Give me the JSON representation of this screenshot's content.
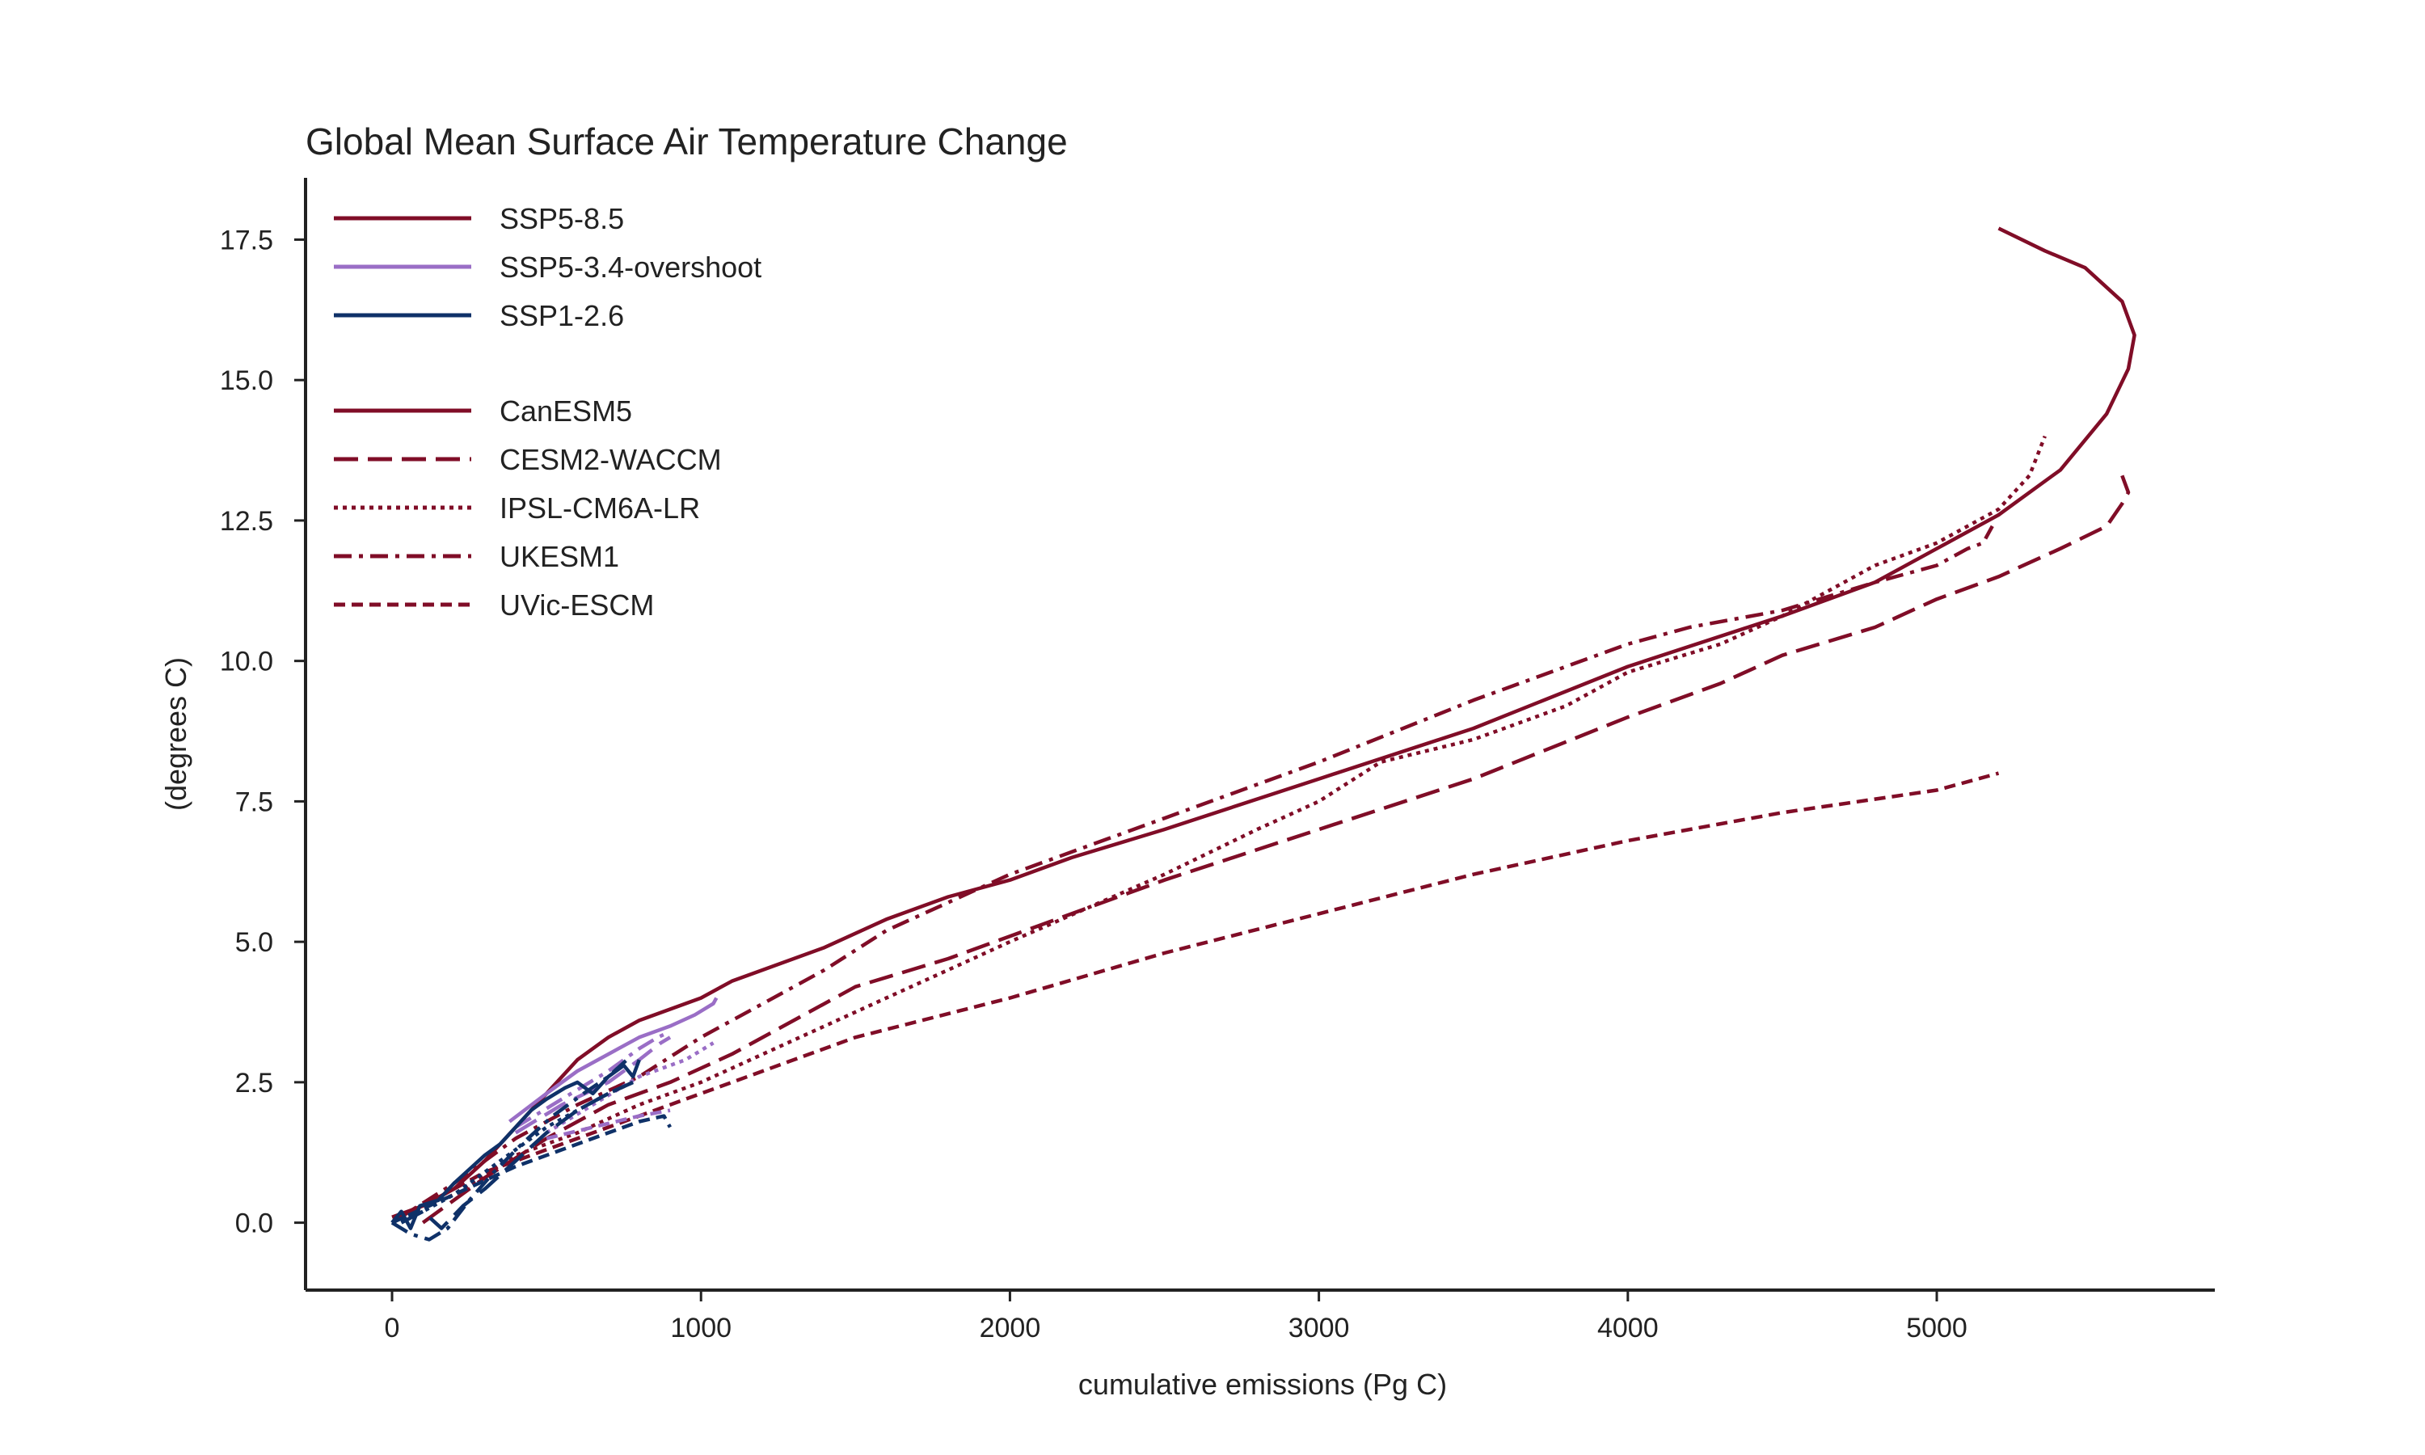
{
  "chart_data": {
    "type": "line",
    "title": "Global Mean Surface Air Temperature Change",
    "xlabel": "cumulative emissions (Pg C)",
    "ylabel": "(degrees C)",
    "xlim": [
      -280,
      5900
    ],
    "ylim": [
      -1.2,
      18.6
    ],
    "xticks": [
      0,
      1000,
      2000,
      3000,
      4000,
      5000
    ],
    "yticks": [
      0.0,
      2.5,
      5.0,
      7.5,
      10.0,
      12.5,
      15.0,
      17.5
    ],
    "xtick_labels": [
      "0",
      "1000",
      "2000",
      "3000",
      "4000",
      "5000"
    ],
    "ytick_labels": [
      "0.0",
      "2.5",
      "5.0",
      "7.5",
      "10.0",
      "12.5",
      "15.0",
      "17.5"
    ],
    "grid": false,
    "legend_position": "top-left",
    "colors": {
      "ssp585": "#800d27",
      "ssp534": "#9a6ec6",
      "ssp126": "#0f3168",
      "axis": "#222222"
    },
    "legend": {
      "scenarios": [
        {
          "label": "SSP5-8.5",
          "color": "#800d27"
        },
        {
          "label": "SSP5-3.4-overshoot",
          "color": "#9a6ec6"
        },
        {
          "label": "SSP1-2.6",
          "color": "#0f3168"
        }
      ],
      "models": [
        {
          "label": "CanESM5",
          "dash": "solid"
        },
        {
          "label": "CESM2-WACCM",
          "dash": "longdash"
        },
        {
          "label": "IPSL-CM6A-LR",
          "dash": "dotted"
        },
        {
          "label": "UKESM1",
          "dash": "dashdot"
        },
        {
          "label": "UVic-ESCM",
          "dash": "dashed"
        }
      ]
    },
    "series": [
      {
        "model": "CanESM5",
        "scenario": "SSP5-8.5",
        "dash": "solid",
        "points": [
          [
            0,
            0.1
          ],
          [
            100,
            0.3
          ],
          [
            200,
            0.6
          ],
          [
            300,
            1.1
          ],
          [
            400,
            1.7
          ],
          [
            500,
            2.3
          ],
          [
            600,
            2.9
          ],
          [
            700,
            3.3
          ],
          [
            800,
            3.6
          ],
          [
            900,
            3.8
          ],
          [
            1000,
            4.0
          ],
          [
            1100,
            4.3
          ],
          [
            1200,
            4.5
          ],
          [
            1400,
            4.9
          ],
          [
            1600,
            5.4
          ],
          [
            1800,
            5.8
          ],
          [
            2000,
            6.1
          ],
          [
            2200,
            6.5
          ],
          [
            2500,
            7.0
          ],
          [
            3000,
            7.9
          ],
          [
            3500,
            8.8
          ],
          [
            4000,
            9.9
          ],
          [
            4500,
            10.8
          ],
          [
            4800,
            11.4
          ],
          [
            5000,
            12.0
          ],
          [
            5200,
            12.6
          ],
          [
            5400,
            13.4
          ],
          [
            5550,
            14.4
          ],
          [
            5620,
            15.2
          ],
          [
            5640,
            15.8
          ],
          [
            5600,
            16.4
          ],
          [
            5480,
            17.0
          ],
          [
            5350,
            17.3
          ],
          [
            5200,
            17.7
          ]
        ]
      },
      {
        "model": "CESM2-WACCM",
        "scenario": "SSP5-8.5",
        "dash": "longdash",
        "points": [
          [
            100,
            0.0
          ],
          [
            300,
            0.8
          ],
          [
            500,
            1.5
          ],
          [
            700,
            2.1
          ],
          [
            900,
            2.5
          ],
          [
            1100,
            3.0
          ],
          [
            1300,
            3.6
          ],
          [
            1500,
            4.2
          ],
          [
            1800,
            4.7
          ],
          [
            2000,
            5.1
          ],
          [
            2500,
            6.1
          ],
          [
            3000,
            7.0
          ],
          [
            3500,
            7.9
          ],
          [
            4000,
            9.0
          ],
          [
            4300,
            9.6
          ],
          [
            4500,
            10.1
          ],
          [
            4800,
            10.6
          ],
          [
            5000,
            11.1
          ],
          [
            5200,
            11.5
          ],
          [
            5400,
            12.0
          ],
          [
            5550,
            12.4
          ],
          [
            5600,
            12.8
          ],
          [
            5620,
            13.0
          ],
          [
            5600,
            13.3
          ]
        ]
      },
      {
        "model": "IPSL-CM6A-LR",
        "scenario": "SSP5-8.5",
        "dash": "dotted",
        "points": [
          [
            0,
            0.0
          ],
          [
            200,
            0.5
          ],
          [
            400,
            1.2
          ],
          [
            600,
            1.6
          ],
          [
            800,
            2.1
          ],
          [
            1000,
            2.5
          ],
          [
            1200,
            3.0
          ],
          [
            1400,
            3.5
          ],
          [
            1600,
            4.0
          ],
          [
            1800,
            4.5
          ],
          [
            2000,
            5.0
          ],
          [
            2500,
            6.2
          ],
          [
            2800,
            7.0
          ],
          [
            3000,
            7.5
          ],
          [
            3200,
            8.2
          ],
          [
            3500,
            8.6
          ],
          [
            3800,
            9.2
          ],
          [
            4000,
            9.8
          ],
          [
            4300,
            10.3
          ],
          [
            4500,
            10.8
          ],
          [
            4800,
            11.7
          ],
          [
            5000,
            12.1
          ],
          [
            5200,
            12.7
          ],
          [
            5300,
            13.3
          ],
          [
            5350,
            14.0
          ]
        ]
      },
      {
        "model": "UKESM1",
        "scenario": "SSP5-8.5",
        "dash": "dashdot",
        "points": [
          [
            0,
            0.0
          ],
          [
            200,
            0.7
          ],
          [
            400,
            1.5
          ],
          [
            600,
            2.1
          ],
          [
            800,
            2.6
          ],
          [
            1000,
            3.3
          ],
          [
            1200,
            3.9
          ],
          [
            1400,
            4.5
          ],
          [
            1600,
            5.2
          ],
          [
            1800,
            5.7
          ],
          [
            2000,
            6.2
          ],
          [
            2500,
            7.2
          ],
          [
            3000,
            8.2
          ],
          [
            3500,
            9.3
          ],
          [
            4000,
            10.3
          ],
          [
            4200,
            10.6
          ],
          [
            4500,
            10.9
          ],
          [
            4800,
            11.4
          ],
          [
            5000,
            11.7
          ],
          [
            5100,
            12.0
          ],
          [
            5150,
            12.1
          ],
          [
            5180,
            12.4
          ]
        ]
      },
      {
        "model": "UVic-ESCM",
        "scenario": "SSP5-8.5",
        "dash": "dashed",
        "points": [
          [
            0,
            0.0
          ],
          [
            300,
            0.9
          ],
          [
            500,
            1.3
          ],
          [
            700,
            1.7
          ],
          [
            900,
            2.1
          ],
          [
            1200,
            2.7
          ],
          [
            1500,
            3.3
          ],
          [
            2000,
            4.0
          ],
          [
            2500,
            4.8
          ],
          [
            3000,
            5.5
          ],
          [
            3500,
            6.2
          ],
          [
            4000,
            6.8
          ],
          [
            4500,
            7.3
          ],
          [
            5000,
            7.7
          ],
          [
            5200,
            8.0
          ]
        ]
      },
      {
        "model": "CanESM5",
        "scenario": "SSP5-3.4-overshoot",
        "dash": "solid",
        "points": [
          [
            380,
            1.8
          ],
          [
            500,
            2.3
          ],
          [
            600,
            2.7
          ],
          [
            700,
            3.0
          ],
          [
            800,
            3.3
          ],
          [
            900,
            3.5
          ],
          [
            980,
            3.7
          ],
          [
            1040,
            3.9
          ],
          [
            1050,
            4.0
          ]
        ]
      },
      {
        "model": "CESM2-WACCM",
        "scenario": "SSP5-3.4-overshoot",
        "dash": "longdash",
        "points": [
          [
            400,
            1.6
          ],
          [
            550,
            2.1
          ],
          [
            700,
            2.5
          ],
          [
            800,
            2.9
          ],
          [
            870,
            3.2
          ],
          [
            900,
            3.3
          ]
        ]
      },
      {
        "model": "IPSL-CM6A-LR",
        "scenario": "SSP5-3.4-overshoot",
        "dash": "dotted",
        "points": [
          [
            500,
            1.6
          ],
          [
            650,
            2.1
          ],
          [
            800,
            2.6
          ],
          [
            950,
            2.9
          ],
          [
            1040,
            3.2
          ]
        ]
      },
      {
        "model": "UKESM1",
        "scenario": "SSP5-3.4-overshoot",
        "dash": "dashdot",
        "points": [
          [
            400,
            1.7
          ],
          [
            550,
            2.2
          ],
          [
            700,
            2.7
          ],
          [
            800,
            3.1
          ],
          [
            860,
            3.3
          ],
          [
            900,
            3.4
          ]
        ]
      },
      {
        "model": "UVic-ESCM",
        "scenario": "SSP5-3.4-overshoot",
        "dash": "dashed",
        "points": [
          [
            500,
            1.5
          ],
          [
            650,
            1.7
          ],
          [
            800,
            1.9
          ],
          [
            900,
            2.0
          ]
        ]
      },
      {
        "model": "CanESM5",
        "scenario": "SSP1-2.6",
        "dash": "solid",
        "points": [
          [
            0,
            0.0
          ],
          [
            30,
            0.2
          ],
          [
            60,
            -0.1
          ],
          [
            90,
            0.3
          ],
          [
            150,
            0.4
          ],
          [
            200,
            0.7
          ],
          [
            260,
            1.0
          ],
          [
            300,
            1.2
          ],
          [
            350,
            1.4
          ],
          [
            400,
            1.7
          ],
          [
            450,
            2.0
          ],
          [
            500,
            2.2
          ],
          [
            560,
            2.4
          ],
          [
            600,
            2.5
          ],
          [
            650,
            2.3
          ],
          [
            700,
            2.6
          ],
          [
            750,
            2.8
          ],
          [
            780,
            2.6
          ],
          [
            800,
            2.9
          ]
        ]
      },
      {
        "model": "CESM2-WACCM",
        "scenario": "SSP1-2.6",
        "dash": "longdash",
        "points": [
          [
            30,
            0.0
          ],
          [
            100,
            0.2
          ],
          [
            160,
            -0.1
          ],
          [
            230,
            0.3
          ],
          [
            300,
            0.6
          ],
          [
            400,
            1.1
          ],
          [
            500,
            1.6
          ],
          [
            600,
            2.0
          ],
          [
            700,
            2.3
          ],
          [
            780,
            2.5
          ]
        ]
      },
      {
        "model": "IPSL-CM6A-LR",
        "scenario": "SSP1-2.6",
        "dash": "dotted",
        "points": [
          [
            0,
            0.0
          ],
          [
            100,
            0.2
          ],
          [
            200,
            0.5
          ],
          [
            300,
            0.9
          ],
          [
            400,
            1.3
          ],
          [
            500,
            1.7
          ],
          [
            600,
            2.0
          ],
          [
            700,
            2.3
          ],
          [
            780,
            2.5
          ]
        ]
      },
      {
        "model": "UKESM1",
        "scenario": "SSP1-2.6",
        "dash": "dashdot",
        "points": [
          [
            0,
            0.0
          ],
          [
            60,
            -0.2
          ],
          [
            120,
            -0.3
          ],
          [
            180,
            -0.1
          ],
          [
            250,
            0.4
          ],
          [
            330,
            0.9
          ],
          [
            420,
            1.4
          ],
          [
            520,
            1.9
          ],
          [
            620,
            2.3
          ],
          [
            700,
            2.6
          ],
          [
            760,
            2.9
          ]
        ]
      },
      {
        "model": "UVic-ESCM",
        "scenario": "SSP1-2.6",
        "dash": "dashed",
        "points": [
          [
            0,
            0.0
          ],
          [
            200,
            0.5
          ],
          [
            400,
            1.0
          ],
          [
            550,
            1.3
          ],
          [
            700,
            1.6
          ],
          [
            800,
            1.8
          ],
          [
            880,
            1.9
          ],
          [
            900,
            1.7
          ]
        ]
      }
    ]
  }
}
